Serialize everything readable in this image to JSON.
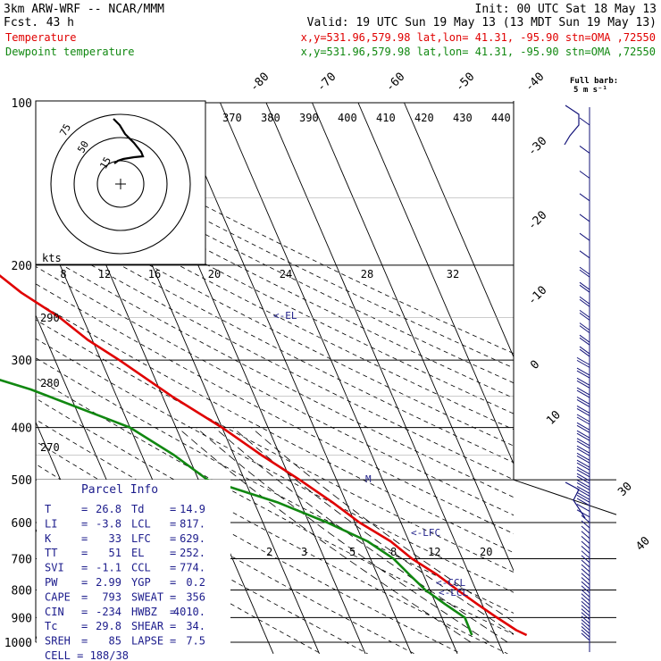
{
  "header": {
    "model": "3km ARW-WRF -- NCAR/MMM",
    "forecast_label": "Fcst.",
    "forecast_hours": "43 h",
    "init": "Init: 00 UTC Sat 18 May 13",
    "valid": "Valid: 19 UTC Sun 19 May 13 (13 MDT Sun 19 May 13)",
    "temp_label": "Temperature",
    "temp_loc": "x,y=531.96,579.98   lat,lon= 41.31, -95.90  stn=OMA ,72550",
    "dew_label": "Dewpoint temperature",
    "dew_loc": "x,y=531.96,579.98   lat,lon= 41.31, -95.90  stn=OMA ,72550"
  },
  "colors": {
    "temperature": "#e00000",
    "dewpoint": "#118811",
    "ink": "#000000",
    "parcel": "#1c1c8c",
    "label_blue": "#23238c",
    "barb": "#14147a",
    "grid": "#999999"
  },
  "barb_key": {
    "line1": "Full barb:",
    "line2": "5 m s⁻¹"
  },
  "hodograph": {
    "unit_label": "kts",
    "ring_labels": [
      "15",
      "50",
      "75"
    ],
    "speed_ticks": [
      "8",
      "12",
      "16",
      "20",
      "24",
      "28",
      "32"
    ]
  },
  "chart_data": {
    "type": "line",
    "title": "Skew-T log-P sounding",
    "pressure_levels": [
      100,
      200,
      300,
      400,
      500,
      600,
      700,
      800,
      900,
      1000
    ],
    "isotherm_labels": [
      {
        "text": "-80",
        "level": 100,
        "role": "top"
      },
      {
        "text": "-70",
        "level": 100,
        "role": "top"
      },
      {
        "text": "-60",
        "level": 100,
        "role": "top"
      },
      {
        "text": "-50",
        "level": 100,
        "role": "top"
      },
      {
        "text": "-40",
        "level": 100,
        "role": "top"
      },
      {
        "text": "-30",
        "level": 160,
        "role": "right"
      },
      {
        "text": "-20",
        "level": 230,
        "role": "right"
      },
      {
        "text": "-10",
        "level": 330,
        "role": "right"
      },
      {
        "text": "0",
        "level": 410,
        "role": "right"
      },
      {
        "text": "10",
        "level": 500,
        "role": "right"
      },
      {
        "text": "30",
        "level": 720,
        "role": "right"
      },
      {
        "text": "40",
        "level": 880,
        "role": "right"
      }
    ],
    "dry_adiabat_labels": [
      "370",
      "380",
      "390",
      "400",
      "410",
      "420",
      "430",
      "440"
    ],
    "side_adiabat_labels": [
      "290",
      "280",
      "270"
    ],
    "mixing_ratio_labels": [
      "2",
      "3",
      "5",
      "8",
      "12",
      "20"
    ],
    "series": [
      {
        "name": "Temperature",
        "points": [
          {
            "p": 100,
            "t": -63.5
          },
          {
            "p": 150,
            "t": -60
          },
          {
            "p": 175,
            "t": -59
          },
          {
            "p": 200,
            "t": -56
          },
          {
            "p": 225,
            "t": -51
          },
          {
            "p": 250,
            "t": -45
          },
          {
            "p": 275,
            "t": -41
          },
          {
            "p": 300,
            "t": -36
          },
          {
            "p": 350,
            "t": -28
          },
          {
            "p": 400,
            "t": -20
          },
          {
            "p": 450,
            "t": -14
          },
          {
            "p": 500,
            "t": -8
          },
          {
            "p": 550,
            "t": -3
          },
          {
            "p": 600,
            "t": 1
          },
          {
            "p": 650,
            "t": 6
          },
          {
            "p": 700,
            "t": 9
          },
          {
            "p": 750,
            "t": 13
          },
          {
            "p": 800,
            "t": 16
          },
          {
            "p": 850,
            "t": 19
          },
          {
            "p": 900,
            "t": 22
          },
          {
            "p": 950,
            "t": 25
          },
          {
            "p": 970,
            "t": 26.8
          }
        ]
      },
      {
        "name": "Dewpoint temperature",
        "points": [
          {
            "p": 100,
            "t": -92
          },
          {
            "p": 130,
            "t": -92
          },
          {
            "p": 150,
            "t": -96
          },
          {
            "p": 175,
            "t": -93
          },
          {
            "p": 200,
            "t": -85
          },
          {
            "p": 230,
            "t": -75
          },
          {
            "p": 250,
            "t": -71
          },
          {
            "p": 270,
            "t": -76
          },
          {
            "p": 300,
            "t": -76
          },
          {
            "p": 340,
            "t": -58
          },
          {
            "p": 400,
            "t": -40
          },
          {
            "p": 450,
            "t": -33
          },
          {
            "p": 500,
            "t": -28
          },
          {
            "p": 550,
            "t": -15
          },
          {
            "p": 600,
            "t": -6
          },
          {
            "p": 650,
            "t": 1
          },
          {
            "p": 700,
            "t": 5
          },
          {
            "p": 750,
            "t": 7
          },
          {
            "p": 800,
            "t": 9
          },
          {
            "p": 850,
            "t": 12
          },
          {
            "p": 900,
            "t": 15
          },
          {
            "p": 970,
            "t": 14.9
          }
        ]
      }
    ],
    "markers": [
      {
        "text": "<-EL",
        "p": 252
      },
      {
        "text": "M",
        "p": 500
      },
      {
        "text": "<-LFC",
        "p": 629
      },
      {
        "text": "<-CCL",
        "p": 774
      },
      {
        "text": "<-LCL",
        "p": 817
      }
    ],
    "ylabel": "",
    "xlabel": ""
  },
  "parcel_info": {
    "title": "Parcel Info",
    "rows": [
      {
        "l1": "T",
        "v1": "26.8",
        "l2": "Td",
        "v2": "14.9"
      },
      {
        "l1": "LI",
        "v1": "-3.8",
        "l2": "LCL",
        "v2": "817."
      },
      {
        "l1": "K",
        "v1": "33",
        "l2": "LFC",
        "v2": "629."
      },
      {
        "l1": "TT",
        "v1": "51",
        "l2": "EL",
        "v2": "252."
      },
      {
        "l1": "SVI",
        "v1": "-1.1",
        "l2": "CCL",
        "v2": "774."
      },
      {
        "l1": "PW",
        "v1": "2.99",
        "l2": "YGP",
        "v2": "0.2"
      },
      {
        "l1": "CAPE",
        "v1": "793",
        "l2": "SWEAT",
        "v2": "356"
      },
      {
        "l1": "CIN",
        "v1": "-234",
        "l2": "HWBZ",
        "v2": "4010."
      },
      {
        "l1": "Tc",
        "v1": "29.8",
        "l2": "SHEAR",
        "v2": "34."
      },
      {
        "l1": "SREH",
        "v1": "85",
        "l2": "LAPSE",
        "v2": "7.5"
      }
    ],
    "cell": "CELL = 188/38"
  }
}
